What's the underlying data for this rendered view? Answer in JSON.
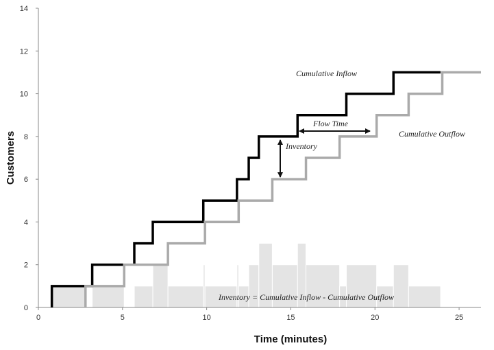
{
  "chart_data": {
    "type": "line",
    "title": "",
    "xlabel": "Time (minutes)",
    "ylabel": "Customers",
    "xlim": [
      0,
      26.3
    ],
    "ylim": [
      0,
      14
    ],
    "xticks": [
      0,
      5,
      10,
      15,
      20,
      25
    ],
    "yticks": [
      0,
      2,
      4,
      6,
      8,
      10,
      12,
      14
    ],
    "grid": false,
    "series": [
      {
        "name": "Cumulative Inflow",
        "style": "step",
        "color": "#000000",
        "x": [
          0.8,
          3.2,
          5.7,
          6.8,
          9.8,
          11.8,
          12.5,
          13.1,
          15.4,
          18.3,
          21.1,
          23.9
        ],
        "y": [
          1,
          2,
          3,
          4,
          5,
          6,
          7,
          8,
          9,
          10,
          11,
          11
        ]
      },
      {
        "name": "Cumulative Outflow",
        "style": "step",
        "color": "#aaaaaa",
        "x": [
          2.8,
          5.1,
          7.7,
          9.9,
          11.9,
          13.9,
          15.9,
          17.9,
          20.1,
          22.0,
          24.0,
          26.3
        ],
        "y": [
          1,
          2,
          3,
          4,
          5,
          6,
          7,
          8,
          9,
          10,
          11,
          11
        ]
      },
      {
        "name": "Inventory",
        "style": "area-step",
        "color": "#e4e4e4",
        "x": [
          0.8,
          2.8,
          3.2,
          5.1,
          5.7,
          6.8,
          7.7,
          9.8,
          9.9,
          11.8,
          11.9,
          12.5,
          13.1,
          13.9,
          15.4,
          15.9,
          17.9,
          18.3,
          20.1,
          21.1,
          22.0,
          23.9,
          24.0
        ],
        "y": [
          1,
          0,
          1,
          0,
          1,
          2,
          1,
          2,
          1,
          2,
          1,
          2,
          3,
          2,
          3,
          2,
          1,
          2,
          1,
          2,
          1,
          0,
          0
        ]
      }
    ],
    "annotations": {
      "inflow_label": "Cumulative Inflow",
      "outflow_label": "Cumulative Outflow",
      "flow_time_label": "Flow Time",
      "inventory_label": "Inventory",
      "formula_label": "Inventory = Cumulative Inflow - Cumulative Outflow"
    }
  }
}
